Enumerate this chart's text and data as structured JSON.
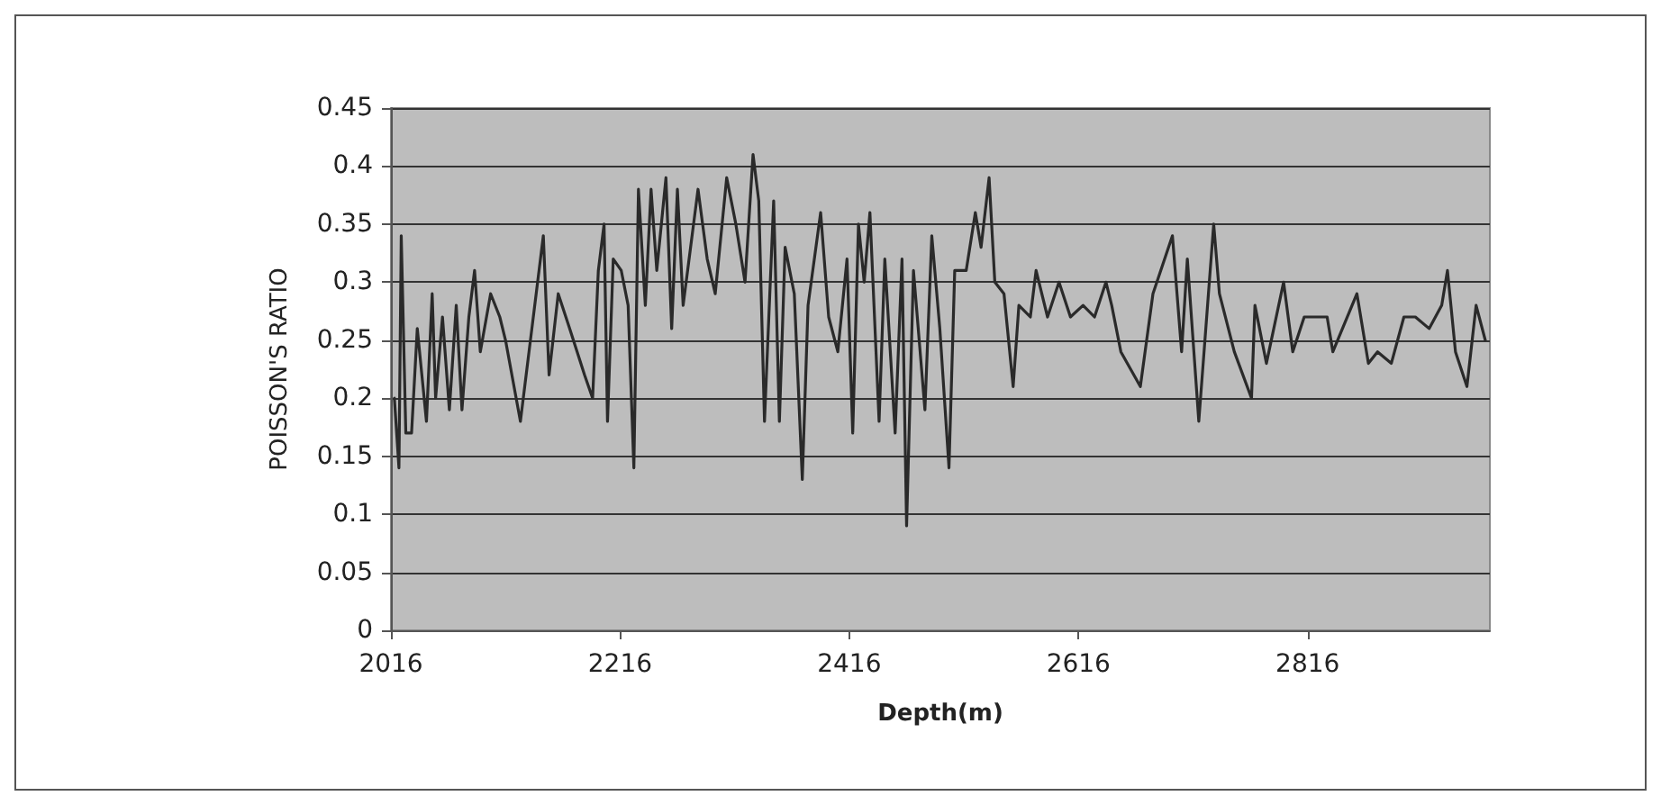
{
  "chart_data": {
    "type": "line",
    "xlabel": "Depth(m)",
    "ylabel": "POISSON'S RATIO",
    "xlim": [
      2016,
      2975
    ],
    "xticks": [
      2016,
      2216,
      2416,
      2616,
      2816
    ],
    "ylim": [
      0,
      0.45
    ],
    "yticks": [
      0,
      0.05,
      0.1,
      0.15,
      0.2,
      0.25,
      0.3,
      0.35,
      0.4,
      0.45
    ],
    "grid": "y",
    "marker": "none",
    "line_style": "solid",
    "series": [
      {
        "color": "#2a2a2a",
        "x": [
          2019,
          2023,
          2025,
          2029,
          2034,
          2039,
          2047,
          2052,
          2055,
          2061,
          2067,
          2073,
          2078,
          2084,
          2089,
          2094,
          2103,
          2111,
          2116,
          2129,
          2139,
          2149,
          2154,
          2162,
          2172,
          2185,
          2192,
          2197,
          2202,
          2205,
          2210,
          2217,
          2223,
          2228,
          2232,
          2238,
          2243,
          2248,
          2256,
          2261,
          2266,
          2271,
          2284,
          2292,
          2299,
          2309,
          2317,
          2325,
          2332,
          2337,
          2342,
          2350,
          2355,
          2360,
          2368,
          2375,
          2380,
          2391,
          2398,
          2406,
          2414,
          2419,
          2424,
          2429,
          2434,
          2442,
          2447,
          2456,
          2462,
          2466,
          2472,
          2482,
          2488,
          2495,
          2503,
          2508,
          2518,
          2526,
          2531,
          2538,
          2543,
          2551,
          2559,
          2564,
          2574,
          2579,
          2589,
          2599,
          2609,
          2620,
          2630,
          2640,
          2645,
          2653,
          2670,
          2681,
          2698,
          2706,
          2711,
          2721,
          2734,
          2739,
          2752,
          2767,
          2770,
          2780,
          2795,
          2803,
          2813,
          2833,
          2838,
          2859,
          2869,
          2877,
          2889,
          2900,
          2910,
          2922,
          2933,
          2938,
          2945,
          2955,
          2963,
          2971
        ],
        "values": [
          0.2,
          0.14,
          0.34,
          0.17,
          0.17,
          0.26,
          0.18,
          0.29,
          0.2,
          0.27,
          0.19,
          0.28,
          0.19,
          0.27,
          0.31,
          0.24,
          0.29,
          0.27,
          0.25,
          0.18,
          0.26,
          0.34,
          0.22,
          0.29,
          0.26,
          0.22,
          0.2,
          0.31,
          0.35,
          0.18,
          0.32,
          0.31,
          0.28,
          0.14,
          0.38,
          0.28,
          0.38,
          0.31,
          0.39,
          0.26,
          0.38,
          0.28,
          0.38,
          0.32,
          0.29,
          0.39,
          0.35,
          0.3,
          0.41,
          0.37,
          0.18,
          0.37,
          0.18,
          0.33,
          0.29,
          0.13,
          0.28,
          0.36,
          0.27,
          0.24,
          0.32,
          0.17,
          0.35,
          0.3,
          0.36,
          0.18,
          0.32,
          0.17,
          0.32,
          0.09,
          0.31,
          0.19,
          0.34,
          0.26,
          0.14,
          0.31,
          0.31,
          0.36,
          0.33,
          0.39,
          0.3,
          0.29,
          0.21,
          0.28,
          0.27,
          0.31,
          0.27,
          0.3,
          0.27,
          0.28,
          0.27,
          0.3,
          0.28,
          0.24,
          0.21,
          0.29,
          0.34,
          0.24,
          0.32,
          0.18,
          0.35,
          0.29,
          0.24,
          0.2,
          0.28,
          0.23,
          0.3,
          0.24,
          0.27,
          0.27,
          0.24,
          0.29,
          0.23,
          0.24,
          0.23,
          0.27,
          0.27,
          0.26,
          0.28,
          0.31,
          0.24,
          0.21,
          0.28,
          0.25
        ]
      }
    ]
  }
}
